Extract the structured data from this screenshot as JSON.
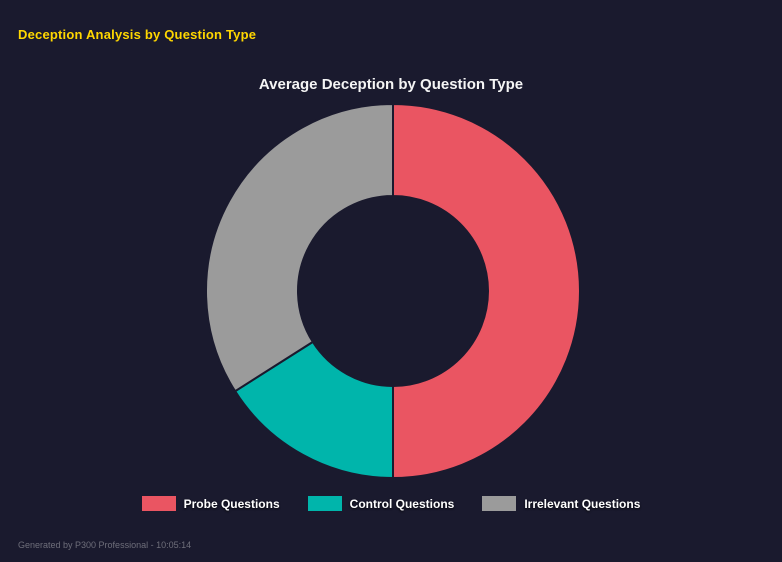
{
  "page": {
    "header_title": "Deception Analysis by Question Type",
    "footer_text": "Generated by P300 Professional - 10:05:14"
  },
  "colors": {
    "background": "#1a1a2e",
    "header_text": "#ffd700",
    "chart_title_text": "#f5f5f5",
    "legend_text": "#ffffff",
    "footer_text": "#6e6e7a"
  },
  "chart_data": {
    "type": "pie",
    "subtype": "doughnut",
    "title": "Average Deception by Question Type",
    "labels": [
      "Probe Questions",
      "Control Questions",
      "Irrelevant Questions"
    ],
    "values": [
      50,
      16,
      34
    ],
    "values_note": "percent of circle, estimated from arc angles (no numeric labels shown)",
    "colors": [
      "#ea5562",
      "#00b5ab",
      "#9b9b9b"
    ],
    "legend_position": "bottom",
    "start_angle_deg": 0,
    "direction": "clockwise",
    "cutout_ratio": 0.51
  }
}
